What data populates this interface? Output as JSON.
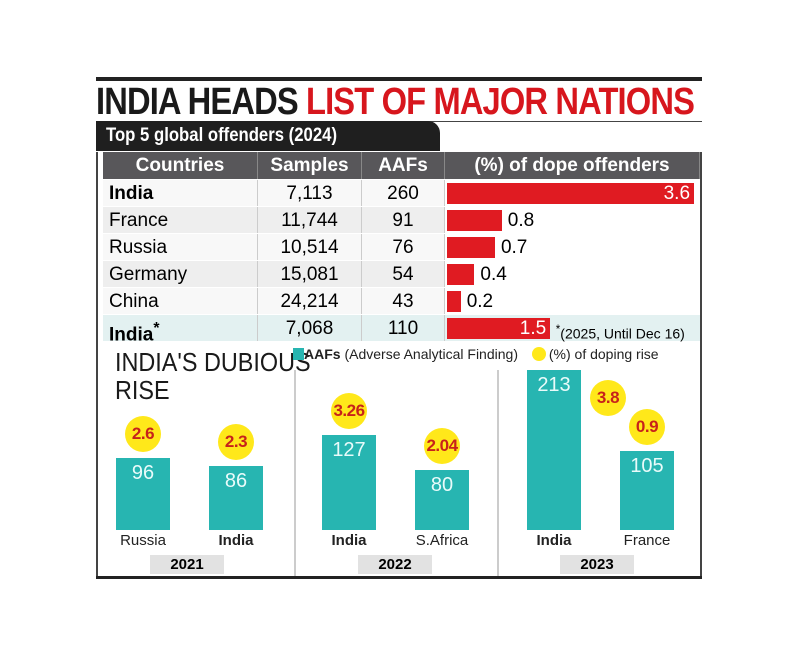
{
  "title": {
    "part1": "INDIA HEADS",
    "part2": "LIST OF MAJOR NATIONS"
  },
  "colors": {
    "accent_red": "#e01b22",
    "teal": "#27b5b1",
    "yellow": "#ffe81a"
  },
  "chart_data": [
    {
      "type": "table",
      "title": "Top 5 global offenders (2024)",
      "columns": [
        "Countries",
        "Samples",
        "AAFs",
        "(%) of dope offenders"
      ],
      "rows": [
        {
          "country": "India",
          "samples": "7,113",
          "aafs": "260",
          "pct": 3.6,
          "pct_label": "3.6",
          "bold": true
        },
        {
          "country": "France",
          "samples": "11,744",
          "aafs": "91",
          "pct": 0.8,
          "pct_label": "0.8"
        },
        {
          "country": "Russia",
          "samples": "10,514",
          "aafs": "76",
          "pct": 0.7,
          "pct_label": "0.7"
        },
        {
          "country": "Germany",
          "samples": "15,081",
          "aafs": "54",
          "pct": 0.4,
          "pct_label": "0.4"
        },
        {
          "country": "China",
          "samples": "24,214",
          "aafs": "43",
          "pct": 0.2,
          "pct_label": "0.2"
        },
        {
          "country": "India",
          "asterisk": "*",
          "samples": "7,068",
          "aafs": "110",
          "pct": 1.5,
          "pct_label": "1.5",
          "bold": true,
          "note": "(2025, Until Dec 16)"
        }
      ]
    },
    {
      "type": "bar",
      "title": "INDIA'S DUBIOUS RISE",
      "legend": {
        "aafs": "AAFs",
        "aafs_desc": "(Adverse Analytical Finding)",
        "pct": "(%) of doping rise"
      },
      "groups": [
        {
          "year": "2021",
          "bars": [
            {
              "country": "Russia",
              "aafs": 96,
              "pct": "2.6"
            },
            {
              "country": "India",
              "aafs": 86,
              "pct": "2.3",
              "bold": true
            }
          ]
        },
        {
          "year": "2022",
          "bars": [
            {
              "country": "India",
              "aafs": 127,
              "pct": "3.26",
              "bold": true
            },
            {
              "country": "S.Africa",
              "aafs": 80,
              "pct": "2.04"
            }
          ]
        },
        {
          "year": "2023",
          "bars": [
            {
              "country": "India",
              "aafs": 213,
              "pct": "3.8",
              "bold": true
            },
            {
              "country": "France",
              "aafs": 105,
              "pct": "0.9"
            }
          ]
        }
      ]
    }
  ]
}
